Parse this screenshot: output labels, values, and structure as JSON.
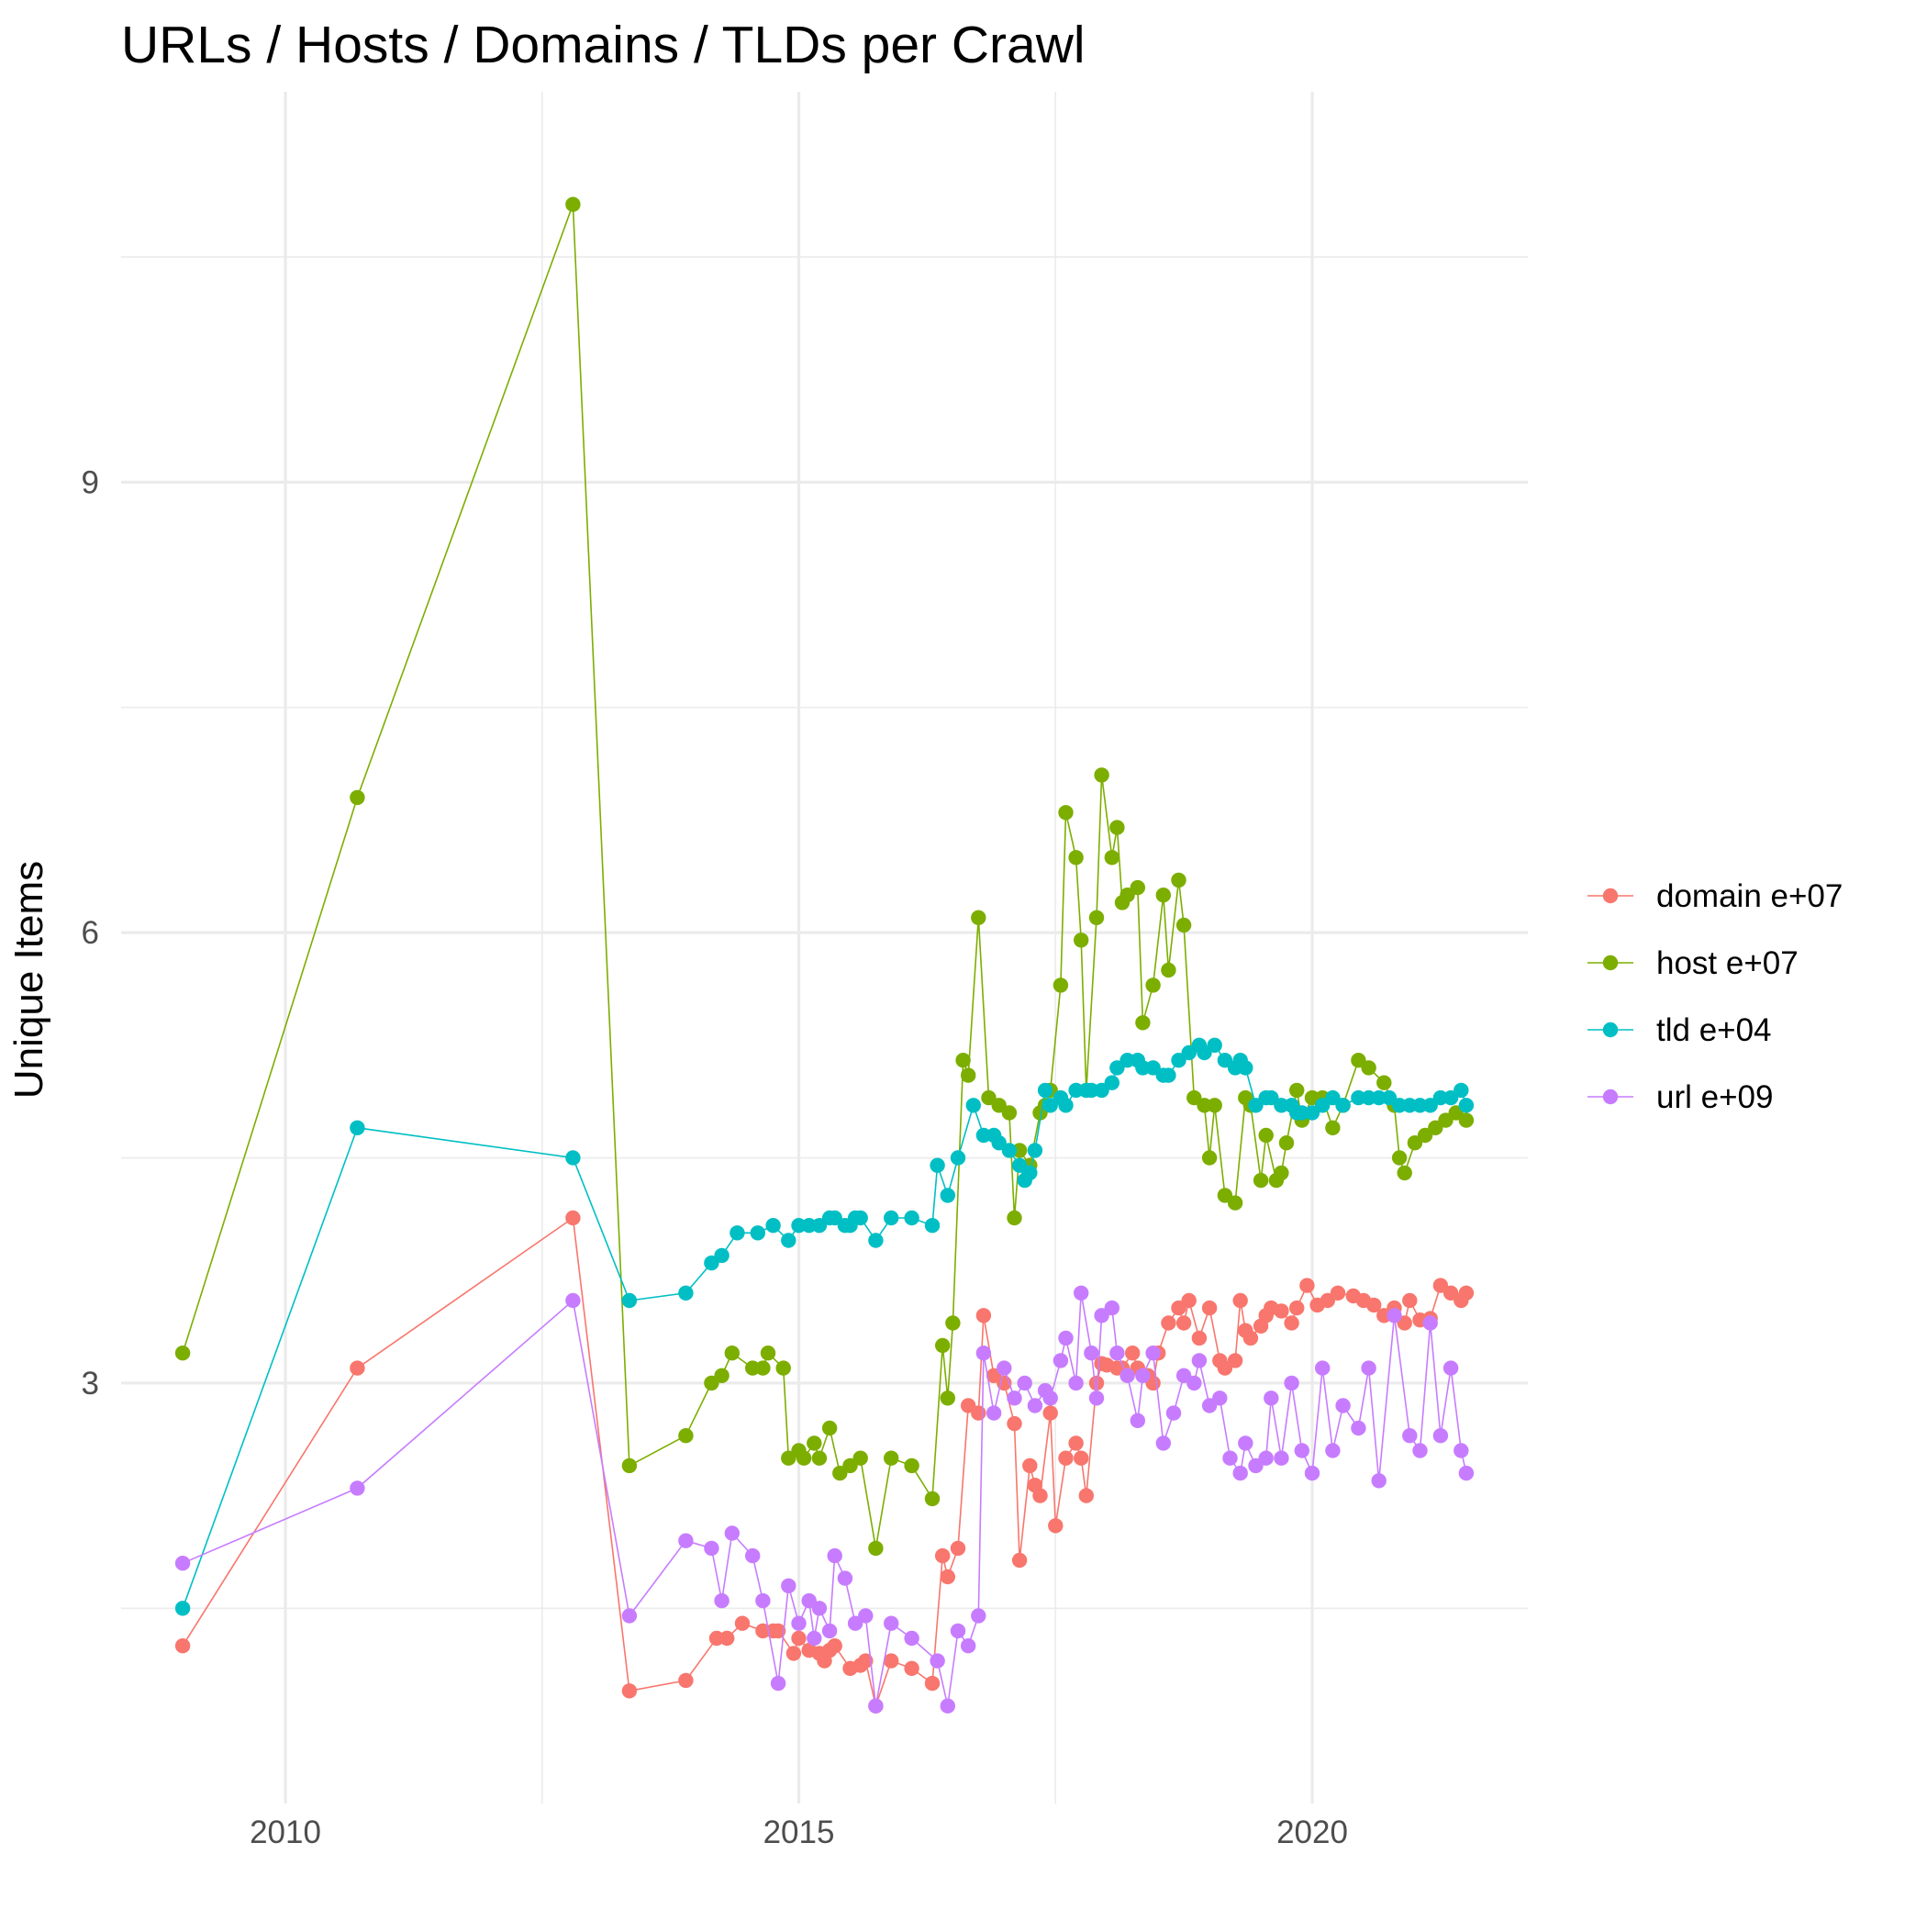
{
  "chart_data": {
    "type": "line",
    "title": "URLs / Hosts / Domains / TLDs per Crawl",
    "xlabel": "",
    "ylabel": "Unique Items",
    "xlim": [
      2008.4,
      2022.1
    ],
    "ylim": [
      0.2,
      11.6
    ],
    "x_ticks": [
      2010,
      2015,
      2020
    ],
    "x_tick_labels": [
      "2010",
      "2015",
      "2020"
    ],
    "x_minor_ticks": [
      2012.5,
      2017.5
    ],
    "y_ticks": [
      3,
      6,
      9
    ],
    "y_tick_labels": [
      "3",
      "6",
      "9"
    ],
    "y_minor_ticks": [
      1.5,
      4.5,
      7.5,
      10.5
    ],
    "grid": true,
    "legend_position": "right",
    "series": [
      {
        "name": "domain e+07",
        "color": "#F8766D",
        "x": [
          2009.0,
          2010.7,
          2012.8,
          2013.35,
          2013.9,
          2014.2,
          2014.3,
          2014.45,
          2014.65,
          2014.75,
          2014.8,
          2014.95,
          2015.0,
          2015.1,
          2015.2,
          2015.25,
          2015.3,
          2015.35,
          2015.5,
          2015.6,
          2015.65,
          2015.75,
          2015.9,
          2016.1,
          2016.3,
          2016.4,
          2016.45,
          2016.55,
          2016.65,
          2016.75,
          2016.8,
          2016.9,
          2017.0,
          2017.1,
          2017.15,
          2017.25,
          2017.3,
          2017.35,
          2017.45,
          2017.5,
          2017.6,
          2017.7,
          2017.75,
          2017.8,
          2017.9,
          2017.95,
          2018.0,
          2018.1,
          2018.15,
          2018.25,
          2018.3,
          2018.4,
          2018.45,
          2018.5,
          2018.6,
          2018.7,
          2018.75,
          2018.8,
          2018.9,
          2019.0,
          2019.1,
          2019.15,
          2019.25,
          2019.3,
          2019.35,
          2019.4,
          2019.5,
          2019.55,
          2019.6,
          2019.7,
          2019.8,
          2019.85,
          2019.95,
          2020.05,
          2020.15,
          2020.25,
          2020.4,
          2020.5,
          2020.6,
          2020.7,
          2020.8,
          2020.9,
          2020.95,
          2021.05,
          2021.15,
          2021.25,
          2021.35,
          2021.45,
          2021.5
        ],
        "y": [
          1.25,
          3.1,
          4.1,
          0.95,
          1.02,
          1.3,
          1.3,
          1.4,
          1.35,
          1.35,
          1.35,
          1.2,
          1.3,
          1.22,
          1.2,
          1.15,
          1.22,
          1.25,
          1.1,
          1.12,
          1.15,
          0.85,
          1.15,
          1.1,
          1.0,
          1.85,
          1.71,
          1.9,
          2.85,
          2.8,
          3.45,
          3.05,
          3.0,
          2.73,
          1.82,
          2.45,
          2.32,
          2.25,
          2.8,
          2.05,
          2.5,
          2.6,
          2.5,
          2.25,
          3.0,
          3.13,
          3.12,
          3.1,
          3.1,
          3.2,
          3.1,
          3.05,
          3.0,
          3.2,
          3.4,
          3.5,
          3.4,
          3.55,
          3.3,
          3.5,
          3.15,
          3.1,
          3.15,
          3.55,
          3.35,
          3.3,
          3.38,
          3.45,
          3.5,
          3.48,
          3.4,
          3.5,
          3.65,
          3.52,
          3.55,
          3.6,
          3.58,
          3.55,
          3.52,
          3.45,
          3.5,
          3.4,
          3.55,
          3.42,
          3.43,
          3.65,
          3.6,
          3.55,
          3.6
        ]
      },
      {
        "name": "host e+07",
        "color": "#7CAE00",
        "x": [
          2009.0,
          2010.7,
          2012.8,
          2013.35,
          2013.9,
          2014.15,
          2014.25,
          2014.35,
          2014.55,
          2014.65,
          2014.7,
          2014.85,
          2014.9,
          2015.0,
          2015.05,
          2015.15,
          2015.2,
          2015.3,
          2015.4,
          2015.5,
          2015.6,
          2015.75,
          2015.9,
          2016.1,
          2016.3,
          2016.4,
          2016.45,
          2016.5,
          2016.6,
          2016.65,
          2016.75,
          2016.85,
          2016.95,
          2017.05,
          2017.1,
          2017.15,
          2017.25,
          2017.35,
          2017.4,
          2017.45,
          2017.55,
          2017.6,
          2017.7,
          2017.75,
          2017.8,
          2017.9,
          2017.95,
          2018.05,
          2018.1,
          2018.15,
          2018.2,
          2018.3,
          2018.35,
          2018.45,
          2018.55,
          2018.6,
          2018.7,
          2018.75,
          2018.85,
          2018.95,
          2019.0,
          2019.05,
          2019.15,
          2019.25,
          2019.35,
          2019.4,
          2019.5,
          2019.55,
          2019.65,
          2019.7,
          2019.75,
          2019.85,
          2019.9,
          2020.0,
          2020.1,
          2020.2,
          2020.3,
          2020.45,
          2020.55,
          2020.7,
          2020.8,
          2020.85,
          2020.9,
          2021.0,
          2021.1,
          2021.2,
          2021.3,
          2021.4,
          2021.5
        ],
        "y": [
          3.2,
          6.9,
          10.85,
          2.45,
          2.65,
          3.0,
          3.05,
          3.2,
          3.1,
          3.1,
          3.2,
          3.1,
          2.5,
          2.55,
          2.5,
          2.6,
          2.5,
          2.7,
          2.4,
          2.45,
          2.5,
          1.9,
          2.5,
          2.45,
          2.23,
          3.25,
          2.9,
          3.4,
          5.15,
          5.05,
          6.1,
          4.9,
          4.85,
          4.8,
          4.1,
          4.55,
          4.45,
          4.8,
          4.85,
          4.95,
          5.65,
          6.8,
          6.5,
          5.95,
          4.95,
          6.1,
          7.05,
          6.5,
          6.7,
          6.2,
          6.25,
          6.3,
          5.4,
          5.65,
          6.25,
          5.75,
          6.35,
          6.05,
          4.9,
          4.85,
          4.5,
          4.85,
          4.25,
          4.2,
          4.9,
          4.85,
          4.35,
          4.65,
          4.35,
          4.4,
          4.6,
          4.95,
          4.75,
          4.9,
          4.9,
          4.7,
          4.85,
          5.15,
          5.1,
          5.0,
          4.85,
          4.5,
          4.4,
          4.6,
          4.65,
          4.7,
          4.75,
          4.8,
          4.75
        ]
      },
      {
        "name": "tld e+04",
        "color": "#00BFC4",
        "x": [
          2009.0,
          2010.7,
          2012.8,
          2013.35,
          2013.9,
          2014.15,
          2014.25,
          2014.4,
          2014.6,
          2014.75,
          2014.9,
          2015.0,
          2015.1,
          2015.2,
          2015.3,
          2015.35,
          2015.45,
          2015.5,
          2015.55,
          2015.6,
          2015.75,
          2015.9,
          2016.1,
          2016.3,
          2016.35,
          2016.45,
          2016.55,
          2016.7,
          2016.8,
          2016.9,
          2016.95,
          2017.05,
          2017.15,
          2017.2,
          2017.25,
          2017.3,
          2017.4,
          2017.45,
          2017.55,
          2017.6,
          2017.7,
          2017.8,
          2017.85,
          2017.95,
          2018.05,
          2018.1,
          2018.2,
          2018.3,
          2018.35,
          2018.45,
          2018.55,
          2018.6,
          2018.7,
          2018.8,
          2018.9,
          2018.95,
          2019.05,
          2019.15,
          2019.25,
          2019.3,
          2019.35,
          2019.45,
          2019.55,
          2019.6,
          2019.7,
          2019.8,
          2019.85,
          2019.9,
          2020.0,
          2020.1,
          2020.2,
          2020.3,
          2020.45,
          2020.55,
          2020.65,
          2020.75,
          2020.85,
          2020.95,
          2021.05,
          2021.15,
          2021.25,
          2021.35,
          2021.45,
          2021.5
        ],
        "y": [
          1.5,
          4.7,
          4.5,
          3.55,
          3.6,
          3.8,
          3.85,
          4.0,
          4.0,
          4.05,
          3.95,
          4.05,
          4.05,
          4.05,
          4.1,
          4.1,
          4.05,
          4.05,
          4.1,
          4.1,
          3.95,
          4.1,
          4.1,
          4.05,
          4.45,
          4.25,
          4.5,
          4.85,
          4.65,
          4.65,
          4.6,
          4.55,
          4.45,
          4.35,
          4.4,
          4.55,
          4.95,
          4.85,
          4.9,
          4.85,
          4.95,
          4.95,
          4.95,
          4.95,
          5.0,
          5.1,
          5.15,
          5.15,
          5.1,
          5.1,
          5.05,
          5.05,
          5.15,
          5.2,
          5.25,
          5.2,
          5.25,
          5.15,
          5.1,
          5.15,
          5.1,
          4.85,
          4.9,
          4.9,
          4.85,
          4.85,
          4.8,
          4.8,
          4.8,
          4.85,
          4.9,
          4.85,
          4.9,
          4.9,
          4.9,
          4.9,
          4.85,
          4.85,
          4.85,
          4.85,
          4.9,
          4.9,
          4.95,
          4.85
        ]
      },
      {
        "name": "url e+09",
        "color": "#C77CFF",
        "x": [
          2009.0,
          2010.7,
          2012.8,
          2013.35,
          2013.9,
          2014.15,
          2014.25,
          2014.35,
          2014.55,
          2014.65,
          2014.8,
          2014.9,
          2015.0,
          2015.1,
          2015.15,
          2015.2,
          2015.3,
          2015.35,
          2015.45,
          2015.55,
          2015.65,
          2015.75,
          2015.9,
          2016.1,
          2016.35,
          2016.45,
          2016.55,
          2016.65,
          2016.75,
          2016.8,
          2016.9,
          2017.0,
          2017.1,
          2017.2,
          2017.3,
          2017.4,
          2017.45,
          2017.55,
          2017.6,
          2017.7,
          2017.75,
          2017.85,
          2017.9,
          2017.95,
          2018.05,
          2018.1,
          2018.2,
          2018.3,
          2018.35,
          2018.45,
          2018.55,
          2018.65,
          2018.75,
          2018.85,
          2018.9,
          2019.0,
          2019.1,
          2019.2,
          2019.3,
          2019.35,
          2019.45,
          2019.55,
          2019.6,
          2019.7,
          2019.8,
          2019.9,
          2020.0,
          2020.1,
          2020.2,
          2020.3,
          2020.45,
          2020.55,
          2020.65,
          2020.8,
          2020.95,
          2021.05,
          2021.15,
          2021.25,
          2021.35,
          2021.45,
          2021.5
        ],
        "y": [
          1.8,
          2.3,
          3.55,
          1.45,
          1.95,
          1.9,
          1.55,
          2.0,
          1.85,
          1.55,
          1.0,
          1.65,
          1.4,
          1.55,
          1.3,
          1.5,
          1.35,
          1.85,
          1.7,
          1.4,
          1.45,
          0.85,
          1.4,
          1.3,
          1.15,
          0.85,
          1.35,
          1.25,
          1.45,
          3.2,
          2.8,
          3.1,
          2.9,
          3.0,
          2.85,
          2.95,
          2.9,
          3.15,
          3.3,
          3.0,
          3.6,
          3.2,
          2.9,
          3.45,
          3.5,
          3.2,
          3.05,
          2.75,
          3.05,
          3.2,
          2.6,
          2.8,
          3.05,
          3.0,
          3.15,
          2.85,
          2.9,
          2.5,
          2.4,
          2.6,
          2.45,
          2.5,
          2.9,
          2.5,
          3.0,
          2.55,
          2.4,
          3.1,
          2.55,
          2.85,
          2.7,
          3.1,
          2.35,
          3.45,
          2.65,
          2.55,
          3.4,
          2.65,
          3.1,
          2.55,
          2.4
        ]
      }
    ]
  }
}
